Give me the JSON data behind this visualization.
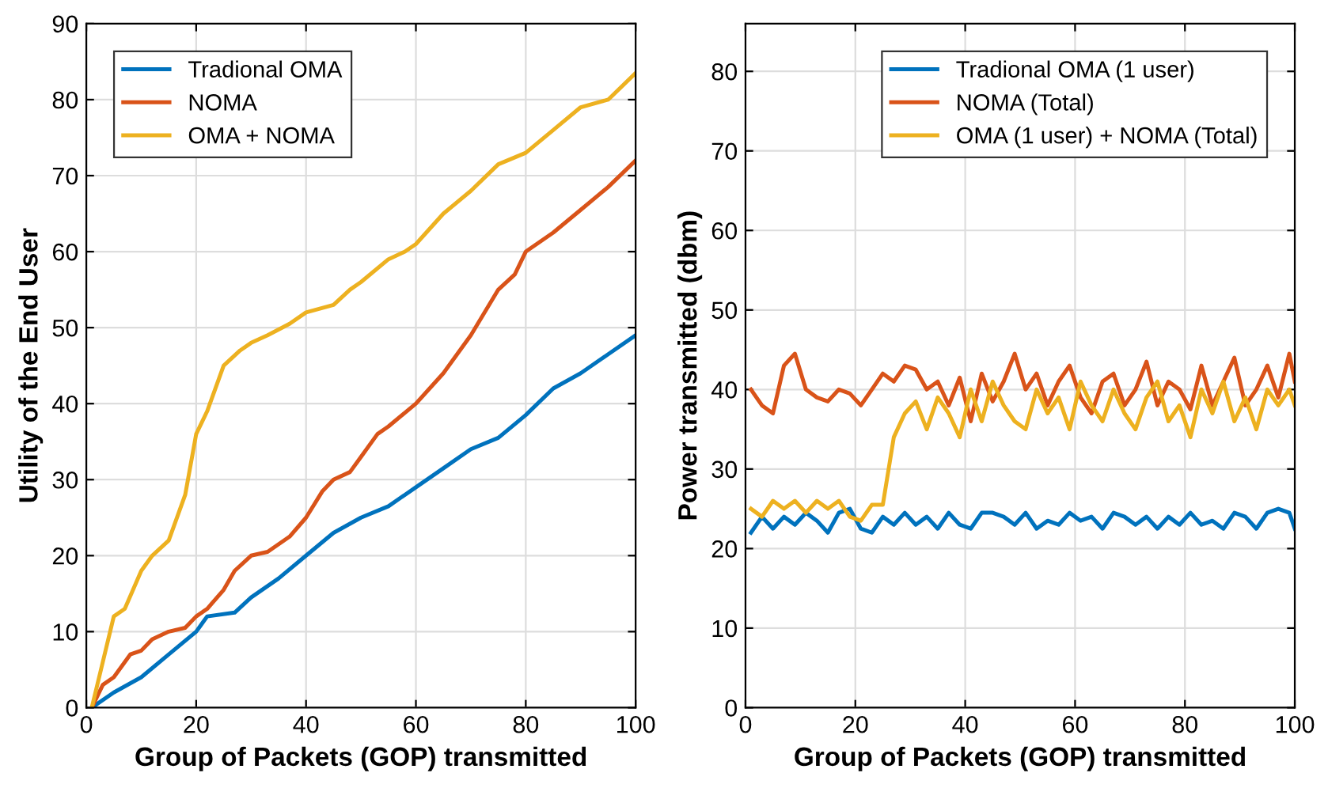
{
  "chart_data": [
    {
      "type": "line",
      "xlabel": "Group of Packets (GOP) transmitted",
      "ylabel": "Utility of the End User",
      "xlim": [
        0,
        100
      ],
      "ylim": [
        0,
        90
      ],
      "xticks": [
        0,
        20,
        40,
        60,
        80,
        100
      ],
      "yticks": [
        0,
        10,
        20,
        30,
        40,
        50,
        60,
        70,
        80,
        90
      ],
      "grid": true,
      "legend": "top left",
      "series": [
        {
          "name": "Tradional OMA",
          "color": "#0072bd",
          "x": [
            1,
            5,
            10,
            15,
            20,
            22,
            27,
            30,
            35,
            40,
            45,
            50,
            55,
            60,
            65,
            70,
            75,
            80,
            85,
            90,
            95,
            100
          ],
          "values": [
            0,
            2,
            4,
            7,
            10,
            12,
            12.5,
            14.5,
            17,
            20,
            23,
            25,
            26.5,
            29,
            31.5,
            34,
            35.5,
            38.5,
            42,
            44,
            46.5,
            49
          ]
        },
        {
          "name": "NOMA",
          "color": "#d95319",
          "x": [
            1,
            3,
            5,
            8,
            10,
            12,
            15,
            18,
            20,
            22,
            25,
            27,
            30,
            33,
            37,
            40,
            43,
            45,
            48,
            50,
            53,
            55,
            60,
            65,
            70,
            75,
            78,
            80,
            85,
            90,
            95,
            100
          ],
          "values": [
            0,
            3,
            4,
            7,
            7.5,
            9,
            10,
            10.5,
            12,
            13,
            15.5,
            18,
            20,
            20.5,
            22.5,
            25,
            28.5,
            30,
            31,
            33,
            36,
            37,
            40,
            44,
            49,
            55,
            57,
            60,
            62.5,
            65.5,
            68.5,
            72
          ]
        },
        {
          "name": "OMA + NOMA",
          "color": "#edb120",
          "x": [
            1,
            3,
            5,
            7,
            10,
            12,
            15,
            18,
            20,
            22,
            23,
            25,
            28,
            30,
            33,
            37,
            40,
            45,
            48,
            50,
            55,
            58,
            60,
            65,
            70,
            75,
            80,
            85,
            90,
            95,
            100
          ],
          "values": [
            0,
            6,
            12,
            13,
            18,
            20,
            22,
            28,
            36,
            39,
            41,
            45,
            47,
            48,
            49,
            50.5,
            52,
            53,
            55,
            56,
            59,
            60,
            61,
            65,
            68,
            71.5,
            73,
            76,
            79,
            80,
            83.5
          ]
        }
      ]
    },
    {
      "type": "line",
      "xlabel": "Group of Packets (GOP) transmitted",
      "ylabel": "Power transmitted (dbm)",
      "xlim": [
        0,
        100
      ],
      "ylim": [
        0,
        86
      ],
      "xticks": [
        0,
        20,
        40,
        60,
        80,
        100
      ],
      "yticks": [
        0,
        10,
        20,
        30,
        40,
        50,
        60,
        70,
        80
      ],
      "grid": true,
      "legend": "top right",
      "series": [
        {
          "name": "Tradional OMA (1 user)",
          "color": "#0072bd",
          "x": [
            1,
            3,
            5,
            7,
            9,
            11,
            13,
            15,
            17,
            19,
            21,
            23,
            25,
            27,
            29,
            31,
            33,
            35,
            37,
            39,
            41,
            43,
            45,
            47,
            49,
            51,
            53,
            55,
            57,
            59,
            61,
            63,
            65,
            67,
            69,
            71,
            73,
            75,
            77,
            79,
            81,
            83,
            85,
            87,
            89,
            91,
            93,
            95,
            97,
            99,
            100
          ],
          "values": [
            22,
            24,
            22.5,
            24,
            23,
            24.5,
            23.5,
            22,
            24.5,
            25,
            22.5,
            22,
            24,
            23,
            24.5,
            23,
            24,
            22.5,
            24.5,
            23,
            22.5,
            24.5,
            24.5,
            24,
            23,
            24.5,
            22.5,
            23.5,
            23,
            24.5,
            23.5,
            24,
            22.5,
            24.5,
            24,
            23,
            24,
            22.5,
            24,
            23,
            24.5,
            23,
            23.5,
            22.5,
            24.5,
            24,
            22.5,
            24.5,
            25,
            24.5,
            22.5
          ]
        },
        {
          "name": "NOMA (Total)",
          "color": "#d95319",
          "x": [
            1,
            3,
            5,
            7,
            9,
            11,
            13,
            15,
            17,
            19,
            21,
            23,
            25,
            27,
            29,
            31,
            33,
            35,
            37,
            39,
            41,
            43,
            45,
            47,
            49,
            51,
            53,
            55,
            57,
            59,
            61,
            63,
            65,
            67,
            69,
            71,
            73,
            75,
            77,
            79,
            81,
            83,
            85,
            87,
            89,
            91,
            93,
            95,
            97,
            99,
            100
          ],
          "values": [
            40,
            38,
            37,
            43,
            44.5,
            40,
            39,
            38.5,
            40,
            39.5,
            38,
            40,
            42,
            41,
            43,
            42.5,
            40,
            41,
            38,
            41.5,
            36,
            42,
            38.5,
            41,
            44.5,
            40,
            42,
            38,
            41,
            43,
            39,
            37,
            41,
            42,
            38,
            40,
            43.5,
            38,
            41,
            40,
            37.5,
            43,
            38,
            41,
            44,
            38,
            40,
            43,
            39,
            44.5,
            41
          ]
        },
        {
          "name": "OMA (1 user) + NOMA (Total)",
          "color": "#edb120",
          "x": [
            1,
            3,
            5,
            7,
            9,
            11,
            13,
            15,
            17,
            19,
            21,
            23,
            25,
            27,
            29,
            31,
            33,
            35,
            37,
            39,
            41,
            43,
            45,
            47,
            49,
            51,
            53,
            55,
            57,
            59,
            61,
            63,
            65,
            67,
            69,
            71,
            73,
            75,
            77,
            79,
            81,
            83,
            85,
            87,
            89,
            91,
            93,
            95,
            97,
            99,
            100
          ],
          "values": [
            25,
            24,
            26,
            25,
            26,
            24.5,
            26,
            25,
            26,
            24,
            23.5,
            25.5,
            25.5,
            34,
            37,
            38.5,
            35,
            39,
            37,
            34,
            40,
            36,
            41,
            38,
            36,
            35,
            40,
            37,
            39,
            35,
            41,
            38,
            36,
            40,
            37,
            35,
            39,
            41,
            36,
            38,
            34,
            40,
            37,
            41,
            36,
            39,
            35,
            40,
            38,
            40,
            38
          ]
        }
      ]
    }
  ]
}
